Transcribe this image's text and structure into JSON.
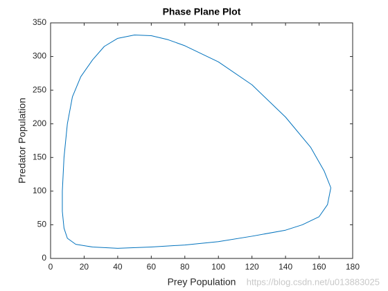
{
  "chart_data": {
    "type": "line",
    "title": "Phase Plane Plot",
    "x_label": "Prey Population",
    "y_label": "Predator Population",
    "xlim": [
      0,
      180
    ],
    "xticks": [
      0,
      20,
      40,
      60,
      80,
      100,
      120,
      140,
      160,
      180
    ],
    "ylim": [
      0,
      350
    ],
    "yticks": [
      0,
      50,
      100,
      150,
      200,
      250,
      300,
      350
    ],
    "grid": false,
    "watermark": "https://blog.csdn.net/u013883025",
    "series": [
      {
        "name": "trajectory",
        "color": "#0072bd",
        "x": [
          167,
          165,
          160,
          150,
          140,
          120,
          100,
          80,
          60,
          40,
          25,
          15,
          10,
          8,
          7,
          7,
          8,
          10,
          13,
          18,
          25,
          32,
          40,
          50,
          60,
          70,
          80,
          100,
          120,
          140,
          155,
          163,
          167
        ],
        "values": [
          105,
          80,
          62,
          50,
          42,
          33,
          25,
          20,
          17,
          15,
          17,
          21,
          30,
          45,
          70,
          100,
          150,
          200,
          240,
          270,
          295,
          315,
          327,
          332,
          331,
          325,
          316,
          292,
          258,
          210,
          165,
          130,
          105
        ]
      }
    ]
  }
}
